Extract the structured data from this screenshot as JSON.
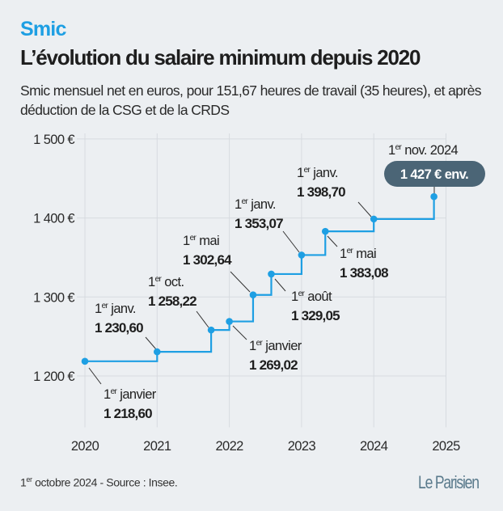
{
  "header": {
    "kicker": "Smic",
    "title": "L’évolution du salaire minimum depuis 2020",
    "subtitle": "Smic mensuel net en euros, pour 151,67 heures de travail (35 heures), et après déduction de la CSG et de la CRDS"
  },
  "footer": {
    "date_sup": "er",
    "date_pre": "1",
    "source": " octobre 2024 - Source : Insee.",
    "logo": "Le Parisien"
  },
  "colors": {
    "line": "#1e9fe3",
    "badge": "#4b6576",
    "background": "#eceff2",
    "grid": "#d7dbe0"
  },
  "chart_data": {
    "type": "line",
    "step": "after",
    "title": "",
    "xlabel": "",
    "ylabel": "",
    "xlim": [
      2020,
      2025
    ],
    "ylim": [
      1135,
      1507
    ],
    "x_ticks": [
      "2020",
      "2021",
      "2022",
      "2023",
      "2024",
      "2025"
    ],
    "y_ticks": [
      1200,
      1300,
      1400,
      1500
    ],
    "y_tick_labels": [
      "1 200 €",
      "1 300 €",
      "1 400 €",
      "1 500 €"
    ],
    "grid": true,
    "points": [
      {
        "date": "2020-01-01",
        "value": 1218.6,
        "label_date": "janvier",
        "label_value": "1 218,60"
      },
      {
        "date": "2021-01-01",
        "value": 1230.6,
        "label_date": "janv.",
        "label_value": "1 230,60"
      },
      {
        "date": "2021-10-01",
        "value": 1258.22,
        "label_date": "oct.",
        "label_value": "1 258,22"
      },
      {
        "date": "2022-01-01",
        "value": 1269.02,
        "label_date": "janvier",
        "label_value": "1 269,02"
      },
      {
        "date": "2022-05-01",
        "value": 1302.64,
        "label_date": "mai",
        "label_value": "1 302,64"
      },
      {
        "date": "2022-08-01",
        "value": 1329.05,
        "label_date": "août",
        "label_value": "1 329,05"
      },
      {
        "date": "2023-01-01",
        "value": 1353.07,
        "label_date": "janv.",
        "label_value": "1 353,07"
      },
      {
        "date": "2023-05-01",
        "value": 1383.08,
        "label_date": "mai",
        "label_value": "1 383,08"
      },
      {
        "date": "2024-01-01",
        "value": 1398.7,
        "label_date": "janv.",
        "label_value": "1 398,70"
      },
      {
        "date": "2024-11-01",
        "value": 1427,
        "label_date": "nov. 2024",
        "label_value": "1 427 € env.",
        "highlight": true
      }
    ],
    "ordinal_prefix": "1",
    "ordinal_sup": "er"
  }
}
